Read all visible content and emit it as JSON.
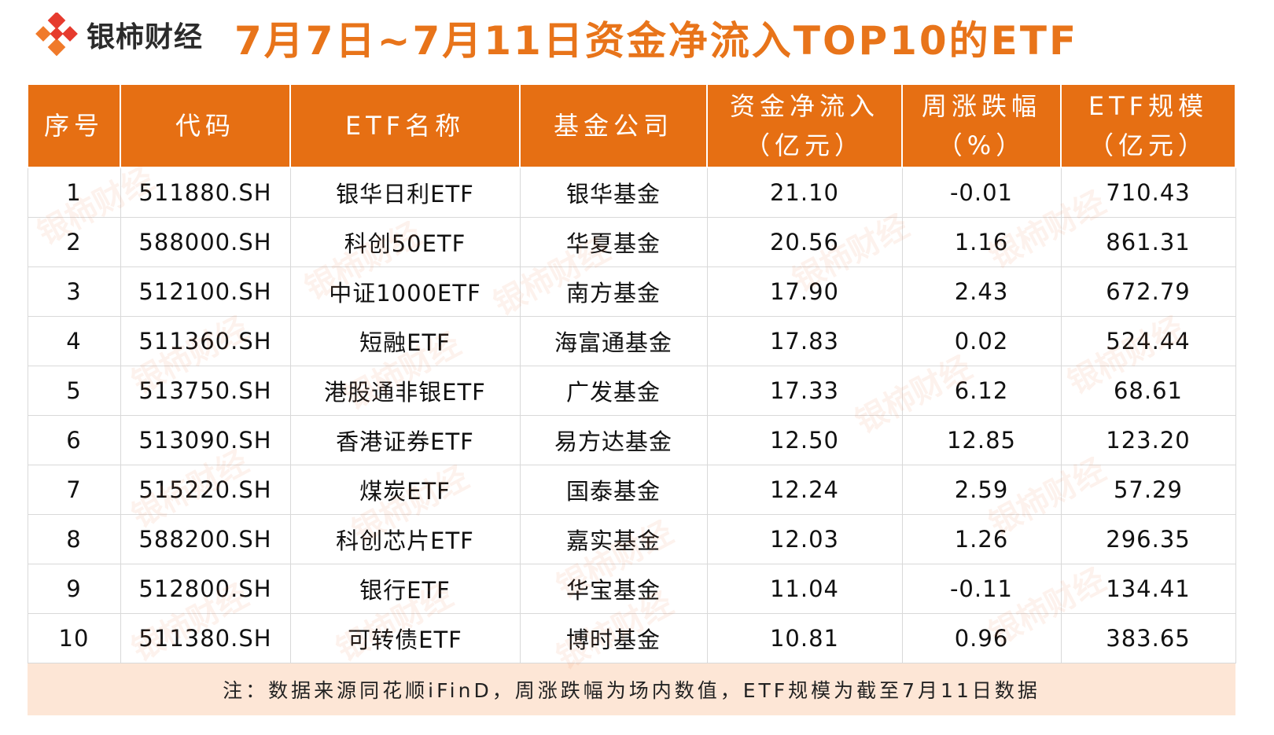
{
  "brand": {
    "name": "银柿财经"
  },
  "title": "7月7日~7月11日资金净流入TOP10的ETF",
  "table": {
    "headers": [
      {
        "line1": "序号",
        "line2": ""
      },
      {
        "line1": "代码",
        "line2": ""
      },
      {
        "line1": "ETF名称",
        "line2": ""
      },
      {
        "line1": "基金公司",
        "line2": ""
      },
      {
        "line1": "资金净流入",
        "line2": "（亿元）"
      },
      {
        "line1": "周涨跌幅",
        "line2": "（%）"
      },
      {
        "line1": "ETF规模",
        "line2": "（亿元）"
      }
    ],
    "rows": [
      [
        "1",
        "511880.SH",
        "银华日利ETF",
        "银华基金",
        "21.10",
        "-0.01",
        "710.43"
      ],
      [
        "2",
        "588000.SH",
        "科创50ETF",
        "华夏基金",
        "20.56",
        "1.16",
        "861.31"
      ],
      [
        "3",
        "512100.SH",
        "中证1000ETF",
        "南方基金",
        "17.90",
        "2.43",
        "672.79"
      ],
      [
        "4",
        "511360.SH",
        "短融ETF",
        "海富通基金",
        "17.83",
        "0.02",
        "524.44"
      ],
      [
        "5",
        "513750.SH",
        "港股通非银ETF",
        "广发基金",
        "17.33",
        "6.12",
        "68.61"
      ],
      [
        "6",
        "513090.SH",
        "香港证券ETF",
        "易方达基金",
        "12.50",
        "12.85",
        "123.20"
      ],
      [
        "7",
        "515220.SH",
        "煤炭ETF",
        "国泰基金",
        "12.24",
        "2.59",
        "57.29"
      ],
      [
        "8",
        "588200.SH",
        "科创芯片ETF",
        "嘉实基金",
        "12.03",
        "1.26",
        "296.35"
      ],
      [
        "9",
        "512800.SH",
        "银行ETF",
        "华宝基金",
        "11.04",
        "-0.11",
        "134.41"
      ],
      [
        "10",
        "511380.SH",
        "可转债ETF",
        "博时基金",
        "10.81",
        "0.96",
        "383.65"
      ]
    ],
    "note": "注：数据来源同花顺iFinD，周涨跌幅为场内数值，ETF规模为截至7月11日数据"
  },
  "colors": {
    "accent": "#e66f13",
    "title": "#e8741a",
    "note_bg": "#fde6d6",
    "logo_red": "#e63b2e"
  },
  "icons": [
    "logo-mark-icon"
  ]
}
